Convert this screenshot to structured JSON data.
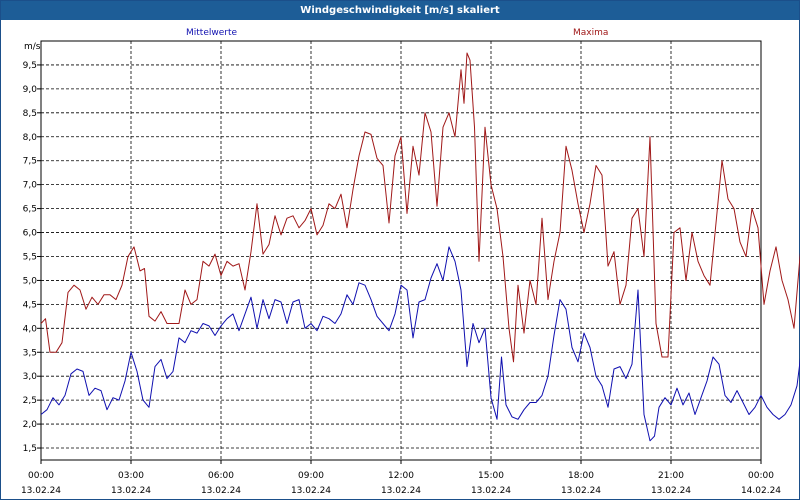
{
  "window": {
    "title": "Windgeschwindigkeit [m/s] skaliert"
  },
  "chart_data": {
    "type": "line",
    "title": "Windgeschwindigkeit [m/s] skaliert",
    "ylabel": "m/s",
    "ylim": [
      1.25,
      10.0
    ],
    "yticks": [
      "1,5",
      "2,0",
      "2,5",
      "3,0",
      "3,5",
      "4,0",
      "4,5",
      "5,0",
      "5,5",
      "6,0",
      "6,5",
      "7,0",
      "7,5",
      "8,0",
      "8,5",
      "9,0",
      "9,5"
    ],
    "xticks": [
      {
        "time": "00:00",
        "date": "13.02.24"
      },
      {
        "time": "03:00",
        "date": "13.02.24"
      },
      {
        "time": "06:00",
        "date": "13.02.24"
      },
      {
        "time": "09:00",
        "date": "13.02.24"
      },
      {
        "time": "12:00",
        "date": "13.02.24"
      },
      {
        "time": "15:00",
        "date": "13.02.24"
      },
      {
        "time": "18:00",
        "date": "13.02.24"
      },
      {
        "time": "21:00",
        "date": "13.02.24"
      },
      {
        "time": "00:00",
        "date": "14.02.24"
      }
    ],
    "xlim_hours": [
      0,
      24
    ],
    "grid": true,
    "series": [
      {
        "name": "Mittelwerte",
        "color": "#1010b0",
        "points": [
          [
            0,
            2.2
          ],
          [
            0.2,
            2.3
          ],
          [
            0.4,
            2.55
          ],
          [
            0.6,
            2.4
          ],
          [
            0.8,
            2.6
          ],
          [
            1.0,
            3.05
          ],
          [
            1.2,
            3.15
          ],
          [
            1.4,
            3.1
          ],
          [
            1.6,
            2.6
          ],
          [
            1.8,
            2.75
          ],
          [
            2.0,
            2.7
          ],
          [
            2.2,
            2.3
          ],
          [
            2.4,
            2.55
          ],
          [
            2.6,
            2.5
          ],
          [
            2.8,
            2.9
          ],
          [
            3.0,
            3.5
          ],
          [
            3.2,
            3.1
          ],
          [
            3.4,
            2.5
          ],
          [
            3.6,
            2.35
          ],
          [
            3.8,
            3.2
          ],
          [
            4.0,
            3.35
          ],
          [
            4.2,
            2.95
          ],
          [
            4.4,
            3.1
          ],
          [
            4.6,
            3.8
          ],
          [
            4.8,
            3.7
          ],
          [
            5.0,
            3.95
          ],
          [
            5.2,
            3.9
          ],
          [
            5.4,
            4.1
          ],
          [
            5.6,
            4.05
          ],
          [
            5.8,
            3.85
          ],
          [
            6.0,
            4.05
          ],
          [
            6.2,
            4.2
          ],
          [
            6.4,
            4.3
          ],
          [
            6.6,
            3.95
          ],
          [
            6.8,
            4.3
          ],
          [
            7.0,
            4.65
          ],
          [
            7.2,
            4.0
          ],
          [
            7.4,
            4.6
          ],
          [
            7.6,
            4.2
          ],
          [
            7.8,
            4.6
          ],
          [
            8.0,
            4.55
          ],
          [
            8.2,
            4.1
          ],
          [
            8.4,
            4.55
          ],
          [
            8.6,
            4.6
          ],
          [
            8.8,
            4.0
          ],
          [
            9.0,
            4.1
          ],
          [
            9.2,
            3.95
          ],
          [
            9.4,
            4.25
          ],
          [
            9.6,
            4.2
          ],
          [
            9.8,
            4.1
          ],
          [
            10.0,
            4.3
          ],
          [
            10.2,
            4.7
          ],
          [
            10.4,
            4.5
          ],
          [
            10.6,
            4.95
          ],
          [
            10.8,
            4.9
          ],
          [
            11.0,
            4.6
          ],
          [
            11.2,
            4.25
          ],
          [
            11.4,
            4.1
          ],
          [
            11.6,
            3.95
          ],
          [
            11.8,
            4.3
          ],
          [
            12.0,
            4.9
          ],
          [
            12.2,
            4.8
          ],
          [
            12.4,
            3.8
          ],
          [
            12.6,
            4.55
          ],
          [
            12.8,
            4.6
          ],
          [
            13.0,
            5.05
          ],
          [
            13.2,
            5.35
          ],
          [
            13.4,
            5.0
          ],
          [
            13.6,
            5.7
          ],
          [
            13.8,
            5.4
          ],
          [
            14.0,
            4.8
          ],
          [
            14.2,
            3.2
          ],
          [
            14.4,
            4.1
          ],
          [
            14.6,
            3.7
          ],
          [
            14.8,
            4.0
          ],
          [
            15.0,
            2.55
          ],
          [
            15.2,
            2.1
          ],
          [
            15.35,
            3.4
          ],
          [
            15.5,
            2.4
          ],
          [
            15.7,
            2.15
          ],
          [
            15.9,
            2.1
          ],
          [
            16.1,
            2.3
          ],
          [
            16.3,
            2.45
          ],
          [
            16.5,
            2.45
          ],
          [
            16.7,
            2.6
          ],
          [
            16.9,
            3.0
          ],
          [
            17.1,
            3.85
          ],
          [
            17.3,
            4.6
          ],
          [
            17.5,
            4.4
          ],
          [
            17.7,
            3.6
          ],
          [
            17.9,
            3.3
          ],
          [
            18.1,
            3.9
          ],
          [
            18.3,
            3.6
          ],
          [
            18.5,
            3.0
          ],
          [
            18.7,
            2.8
          ],
          [
            18.9,
            2.35
          ],
          [
            19.1,
            3.15
          ],
          [
            19.3,
            3.2
          ],
          [
            19.5,
            2.95
          ],
          [
            19.7,
            3.25
          ],
          [
            19.9,
            4.8
          ],
          [
            20.1,
            2.2
          ],
          [
            20.3,
            1.65
          ],
          [
            20.45,
            1.75
          ],
          [
            20.6,
            2.35
          ],
          [
            20.8,
            2.55
          ],
          [
            21.0,
            2.4
          ],
          [
            21.2,
            2.75
          ],
          [
            21.4,
            2.4
          ],
          [
            21.6,
            2.65
          ],
          [
            21.8,
            2.2
          ],
          [
            22.0,
            2.55
          ],
          [
            22.2,
            2.9
          ],
          [
            22.4,
            3.4
          ],
          [
            22.6,
            3.25
          ],
          [
            22.8,
            2.6
          ],
          [
            23.0,
            2.45
          ],
          [
            23.2,
            2.7
          ],
          [
            23.4,
            2.45
          ],
          [
            23.6,
            2.2
          ],
          [
            23.8,
            2.35
          ],
          [
            24.0,
            2.6
          ],
          [
            24.2,
            2.35
          ],
          [
            24.4,
            2.2
          ],
          [
            24.6,
            2.1
          ],
          [
            24.8,
            2.2
          ],
          [
            25.0,
            2.4
          ],
          [
            25.2,
            2.8
          ],
          [
            25.4,
            3.8
          ],
          [
            25.6,
            4.3
          ],
          [
            25.8,
            4.5
          ]
        ]
      },
      {
        "name": "Maxima",
        "color": "#a01818",
        "points": [
          [
            0,
            4.1
          ],
          [
            0.15,
            4.2
          ],
          [
            0.3,
            3.5
          ],
          [
            0.5,
            3.5
          ],
          [
            0.7,
            3.7
          ],
          [
            0.9,
            4.75
          ],
          [
            1.1,
            4.9
          ],
          [
            1.3,
            4.8
          ],
          [
            1.5,
            4.4
          ],
          [
            1.7,
            4.65
          ],
          [
            1.9,
            4.5
          ],
          [
            2.1,
            4.7
          ],
          [
            2.3,
            4.7
          ],
          [
            2.5,
            4.6
          ],
          [
            2.7,
            4.9
          ],
          [
            2.9,
            5.5
          ],
          [
            3.1,
            5.7
          ],
          [
            3.3,
            5.2
          ],
          [
            3.45,
            5.25
          ],
          [
            3.6,
            4.25
          ],
          [
            3.8,
            4.15
          ],
          [
            4.0,
            4.35
          ],
          [
            4.2,
            4.1
          ],
          [
            4.4,
            4.1
          ],
          [
            4.6,
            4.1
          ],
          [
            4.8,
            4.8
          ],
          [
            5.0,
            4.5
          ],
          [
            5.2,
            4.6
          ],
          [
            5.4,
            5.4
          ],
          [
            5.6,
            5.3
          ],
          [
            5.8,
            5.55
          ],
          [
            6.0,
            5.1
          ],
          [
            6.2,
            5.4
          ],
          [
            6.4,
            5.3
          ],
          [
            6.6,
            5.35
          ],
          [
            6.8,
            4.8
          ],
          [
            7.0,
            5.6
          ],
          [
            7.2,
            6.6
          ],
          [
            7.4,
            5.55
          ],
          [
            7.6,
            5.75
          ],
          [
            7.8,
            6.35
          ],
          [
            8.0,
            5.95
          ],
          [
            8.2,
            6.3
          ],
          [
            8.4,
            6.35
          ],
          [
            8.6,
            6.1
          ],
          [
            8.8,
            6.25
          ],
          [
            9.0,
            6.5
          ],
          [
            9.2,
            5.95
          ],
          [
            9.4,
            6.15
          ],
          [
            9.6,
            6.6
          ],
          [
            9.8,
            6.5
          ],
          [
            10.0,
            6.8
          ],
          [
            10.2,
            6.1
          ],
          [
            10.4,
            6.9
          ],
          [
            10.6,
            7.6
          ],
          [
            10.8,
            8.1
          ],
          [
            11.0,
            8.05
          ],
          [
            11.2,
            7.55
          ],
          [
            11.4,
            7.4
          ],
          [
            11.6,
            6.2
          ],
          [
            11.8,
            7.6
          ],
          [
            12.0,
            8.0
          ],
          [
            12.2,
            6.4
          ],
          [
            12.4,
            7.8
          ],
          [
            12.6,
            7.2
          ],
          [
            12.8,
            8.5
          ],
          [
            13.0,
            8.1
          ],
          [
            13.2,
            6.55
          ],
          [
            13.4,
            8.2
          ],
          [
            13.6,
            8.5
          ],
          [
            13.8,
            8.0
          ],
          [
            14.0,
            9.4
          ],
          [
            14.1,
            8.7
          ],
          [
            14.2,
            9.75
          ],
          [
            14.3,
            9.6
          ],
          [
            14.45,
            8.2
          ],
          [
            14.6,
            5.4
          ],
          [
            14.8,
            8.2
          ],
          [
            15.0,
            7.0
          ],
          [
            15.2,
            6.5
          ],
          [
            15.4,
            5.5
          ],
          [
            15.6,
            4.0
          ],
          [
            15.75,
            3.3
          ],
          [
            15.9,
            4.9
          ],
          [
            16.1,
            3.9
          ],
          [
            16.3,
            5.0
          ],
          [
            16.5,
            4.5
          ],
          [
            16.7,
            6.3
          ],
          [
            16.9,
            4.6
          ],
          [
            17.1,
            5.4
          ],
          [
            17.3,
            6.0
          ],
          [
            17.5,
            7.8
          ],
          [
            17.7,
            7.3
          ],
          [
            17.9,
            6.6
          ],
          [
            18.1,
            6.0
          ],
          [
            18.3,
            6.6
          ],
          [
            18.5,
            7.4
          ],
          [
            18.7,
            7.2
          ],
          [
            18.9,
            5.3
          ],
          [
            19.1,
            5.6
          ],
          [
            19.3,
            4.5
          ],
          [
            19.5,
            4.9
          ],
          [
            19.7,
            6.3
          ],
          [
            19.9,
            6.5
          ],
          [
            20.1,
            5.5
          ],
          [
            20.3,
            8.0
          ],
          [
            20.5,
            4.1
          ],
          [
            20.7,
            3.4
          ],
          [
            20.9,
            3.4
          ],
          [
            21.1,
            6.0
          ],
          [
            21.3,
            6.1
          ],
          [
            21.5,
            5.0
          ],
          [
            21.7,
            6.0
          ],
          [
            21.9,
            5.4
          ],
          [
            22.1,
            5.1
          ],
          [
            22.3,
            4.9
          ],
          [
            22.5,
            6.2
          ],
          [
            22.7,
            7.5
          ],
          [
            22.9,
            6.7
          ],
          [
            23.1,
            6.5
          ],
          [
            23.3,
            5.8
          ],
          [
            23.5,
            5.5
          ],
          [
            23.7,
            6.5
          ],
          [
            23.9,
            6.1
          ],
          [
            24.1,
            4.5
          ],
          [
            24.3,
            5.2
          ],
          [
            24.5,
            5.7
          ],
          [
            24.7,
            5.0
          ],
          [
            24.9,
            4.6
          ],
          [
            25.1,
            4.0
          ],
          [
            25.3,
            5.5
          ],
          [
            25.5,
            6.5
          ],
          [
            25.7,
            7.6
          ],
          [
            25.9,
            8.0
          ]
        ]
      }
    ]
  }
}
